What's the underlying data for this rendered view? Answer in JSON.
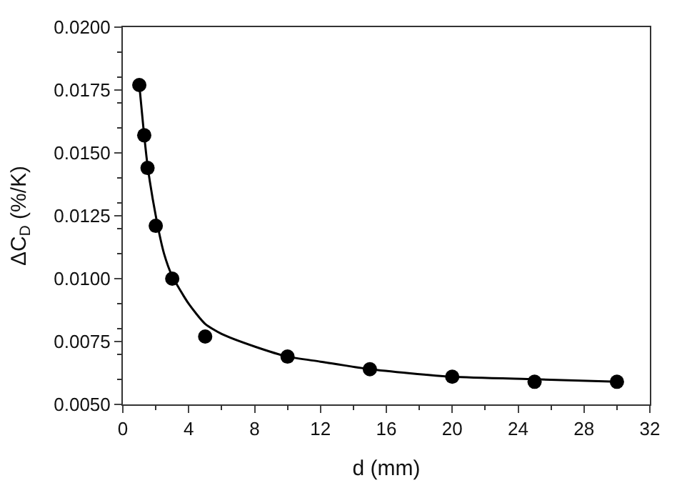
{
  "chart_data": {
    "type": "scatter",
    "xlabel": "d (mm)",
    "ylabel": "ΔC$_{D}$ (%/K)",
    "xlim": [
      0,
      32
    ],
    "xticks": [
      0,
      4,
      8,
      12,
      16,
      20,
      24,
      28,
      32
    ],
    "ylim": [
      0.005,
      0.02
    ],
    "yticks": [
      {
        "value": 0.005,
        "label": "0.0050"
      },
      {
        "value": 0.0075,
        "label": "0.0075"
      },
      {
        "value": 0.01,
        "label": "0.0100"
      },
      {
        "value": 0.0125,
        "label": "0.0125"
      },
      {
        "value": 0.015,
        "label": "0.0150"
      },
      {
        "value": 0.0175,
        "label": "0.0175"
      },
      {
        "value": 0.02,
        "label": "0.0200"
      }
    ],
    "marker": "circle",
    "series": [
      {
        "color": "#000000",
        "x": [
          1,
          1.3,
          1.5,
          2,
          3,
          5,
          10,
          15,
          20,
          25,
          30
        ],
        "values": [
          0.0177,
          0.0157,
          0.0144,
          0.0121,
          0.01,
          0.0077,
          0.0069,
          0.0064,
          0.0061,
          0.0059,
          0.0059
        ]
      },
      {
        "type": "line",
        "color": "#000000",
        "line_style": "solid",
        "marker": "none",
        "x": [
          1,
          1.25,
          1.5,
          2,
          2.5,
          3,
          4,
          5,
          6,
          8,
          10,
          12,
          15,
          20,
          25,
          30
        ],
        "values": [
          0.0177,
          0.016,
          0.0145,
          0.0125,
          0.011,
          0.0101,
          0.009,
          0.0082,
          0.0078,
          0.0073,
          0.0069,
          0.0067,
          0.0064,
          0.0061,
          0.006,
          0.0059
        ]
      }
    ]
  }
}
